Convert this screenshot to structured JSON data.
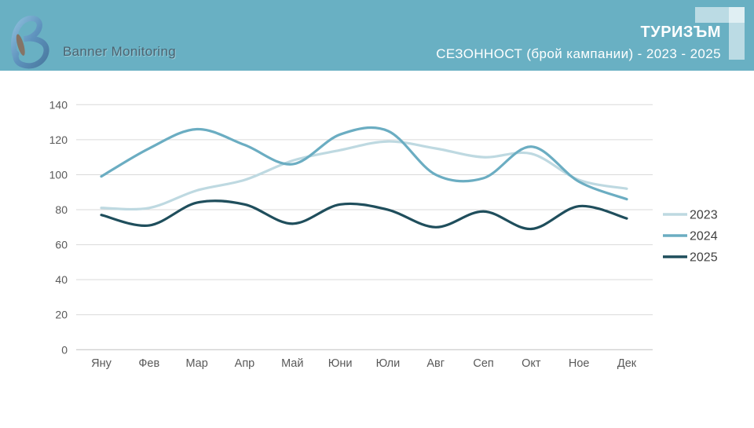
{
  "header": {
    "logo_text": "Banner Monitoring",
    "title": "ТУРИЗЪМ",
    "subtitle": "СЕЗОННОСТ (брой кампании) - 2023 - 2025",
    "bg_color": "#69b0c3",
    "corner_color": "rgba(255,255,255,0.55)"
  },
  "chart_data": {
    "type": "line",
    "smooth": true,
    "grid": "horizontal",
    "legend_position": "right",
    "ylim": [
      0,
      140
    ],
    "ytick_step": 20,
    "yticks": [
      0,
      20,
      40,
      60,
      80,
      100,
      120,
      140
    ],
    "categories": [
      "Яну",
      "Фев",
      "Мар",
      "Апр",
      "Май",
      "Юни",
      "Юли",
      "Авг",
      "Сеп",
      "Окт",
      "Ное",
      "Дек"
    ],
    "series": [
      {
        "name": "2023",
        "color": "#bed9e1",
        "values": [
          81,
          81,
          91,
          97,
          108,
          114,
          119,
          115,
          110,
          112,
          97,
          92
        ]
      },
      {
        "name": "2024",
        "color": "#6badc2",
        "values": [
          99,
          115,
          126,
          117,
          106,
          123,
          125,
          100,
          98,
          116,
          96,
          86
        ]
      },
      {
        "name": "2025",
        "color": "#1f4e5c",
        "values": [
          77,
          71,
          84,
          83,
          72,
          83,
          80,
          70,
          79,
          69,
          82,
          75
        ]
      }
    ]
  },
  "colors": {
    "grid": "#d9d9d9",
    "axis_line": "#c0c0c0",
    "axis_label": "#595959",
    "legend_label": "#404040",
    "background": "#ffffff"
  }
}
